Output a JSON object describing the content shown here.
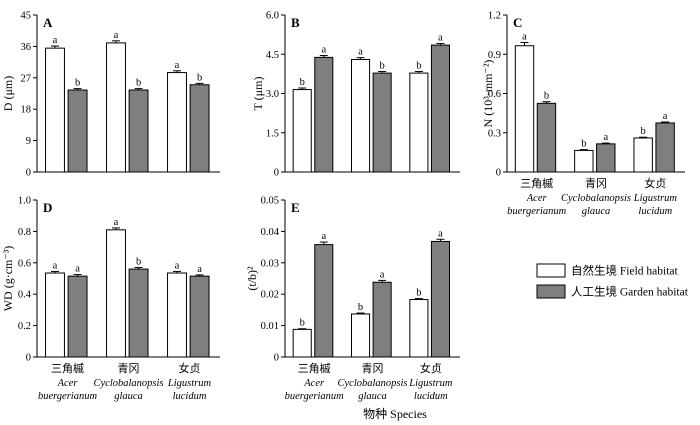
{
  "colors": {
    "field": "#ffffff",
    "garden": "#7f7f7f",
    "stroke": "#000000"
  },
  "categories": [
    {
      "zh": "三角槭",
      "latin1": "Acer",
      "latin2": "buergerianum"
    },
    {
      "zh": "青冈",
      "latin1": "Cyclobalanopsis",
      "latin2": "glauca"
    },
    {
      "zh": "女贞",
      "latin1": "Ligustrum",
      "latin2": "lucidum"
    }
  ],
  "xlabel": "物种 Species",
  "legend": {
    "field": "自然生境 Field habitat",
    "garden": "人工生境 Garden habitat"
  },
  "chart_data": [
    {
      "type": "bar",
      "panel": "A",
      "ylabel": "D (μm)",
      "categories": [
        "三角槭 Acer buergerianum",
        "青冈 Cyclobalanopsis glauca",
        "女贞 Ligustrum lucidum"
      ],
      "ylim": [
        0,
        45
      ],
      "ticks": [
        "0",
        "9",
        "18",
        "27",
        "36",
        "45"
      ],
      "ytick_values": [
        0,
        9,
        18,
        27,
        36,
        45
      ],
      "series": [
        {
          "name": "自然生境 Field habitat",
          "values": [
            35.5,
            37.0,
            28.5
          ],
          "errors": [
            0.6,
            0.6,
            0.5
          ],
          "letters": [
            "a",
            "a",
            "a"
          ]
        },
        {
          "name": "人工生境 Garden habitat",
          "values": [
            23.5,
            23.5,
            25.0
          ],
          "errors": [
            0.4,
            0.4,
            0.4
          ],
          "letters": [
            "b",
            "b",
            "b"
          ]
        }
      ]
    },
    {
      "type": "bar",
      "panel": "B",
      "ylabel": "T (μm)",
      "categories": [
        "三角槭 Acer buergerianum",
        "青冈 Cyclobalanopsis glauca",
        "女贞 Ligustrum lucidum"
      ],
      "ylim": [
        0,
        6
      ],
      "ticks": [
        "0",
        "1.5",
        "3.0",
        "4.5",
        "6.0"
      ],
      "ytick_values": [
        0,
        1.5,
        3.0,
        4.5,
        6.0
      ],
      "series": [
        {
          "name": "自然生境 Field habitat",
          "values": [
            3.15,
            4.3,
            3.78
          ],
          "errors": [
            0.06,
            0.07,
            0.06
          ],
          "letters": [
            "b",
            "a",
            "b"
          ]
        },
        {
          "name": "人工生境 Garden habitat",
          "values": [
            4.38,
            3.78,
            4.85
          ],
          "errors": [
            0.07,
            0.06,
            0.06
          ],
          "letters": [
            "a",
            "b",
            "a"
          ]
        }
      ]
    },
    {
      "type": "bar",
      "panel": "C",
      "ylabel": "N (10³·mm⁻²)",
      "categories": [
        "三角槭 Acer buergerianum",
        "青冈 Cyclobalanopsis glauca",
        "女贞 Ligustrum lucidum"
      ],
      "ylim": [
        0,
        1.2
      ],
      "ticks": [
        "0",
        "0.3",
        "0.6",
        "0.9",
        "1.2"
      ],
      "ytick_values": [
        0,
        0.3,
        0.6,
        0.9,
        1.2
      ],
      "series": [
        {
          "name": "自然生境 Field habitat",
          "values": [
            0.965,
            0.165,
            0.26
          ],
          "errors": [
            0.025,
            0.006,
            0.006
          ],
          "letters": [
            "a",
            "b",
            "b"
          ]
        },
        {
          "name": "人工生境 Garden habitat",
          "values": [
            0.525,
            0.215,
            0.375
          ],
          "errors": [
            0.012,
            0.006,
            0.007
          ],
          "letters": [
            "b",
            "a",
            "a"
          ]
        }
      ]
    },
    {
      "type": "bar",
      "panel": "D",
      "ylabel": "WD (g·cm⁻³)",
      "categories": [
        "三角槭 Acer buergerianum",
        "青冈 Cyclobalanopsis glauca",
        "女贞 Ligustrum lucidum"
      ],
      "ylim": [
        0,
        1.0
      ],
      "ticks": [
        "0",
        "0.2",
        "0.4",
        "0.6",
        "0.8",
        "1.0"
      ],
      "ytick_values": [
        0,
        0.2,
        0.4,
        0.6,
        0.8,
        1.0
      ],
      "series": [
        {
          "name": "自然生境 Field habitat",
          "values": [
            0.535,
            0.81,
            0.535
          ],
          "errors": [
            0.01,
            0.012,
            0.01
          ],
          "letters": [
            "a",
            "a",
            "a"
          ]
        },
        {
          "name": "人工生境 Garden habitat",
          "values": [
            0.515,
            0.56,
            0.515
          ],
          "errors": [
            0.01,
            0.01,
            0.008
          ],
          "letters": [
            "a",
            "b",
            "a"
          ]
        }
      ]
    },
    {
      "type": "bar",
      "panel": "E",
      "ylabel": "(t/b)²",
      "categories": [
        "三角槭 Acer buergerianum",
        "青冈 Cyclobalanopsis glauca",
        "女贞 Ligustrum lucidum"
      ],
      "ylim": [
        0,
        0.05
      ],
      "ticks": [
        "0",
        "0.01",
        "0.02",
        "0.03",
        "0.04",
        "0.05"
      ],
      "ytick_values": [
        0,
        0.01,
        0.02,
        0.03,
        0.04,
        0.05
      ],
      "series": [
        {
          "name": "自然生境 Field habitat",
          "values": [
            0.0088,
            0.0137,
            0.0183
          ],
          "errors": [
            0.0002,
            0.0003,
            0.0003
          ],
          "letters": [
            "b",
            "b",
            "b"
          ]
        },
        {
          "name": "人工生境 Garden habitat",
          "values": [
            0.0358,
            0.0238,
            0.0368
          ],
          "errors": [
            0.0008,
            0.0006,
            0.0007
          ],
          "letters": [
            "a",
            "a",
            "a"
          ]
        }
      ]
    }
  ]
}
